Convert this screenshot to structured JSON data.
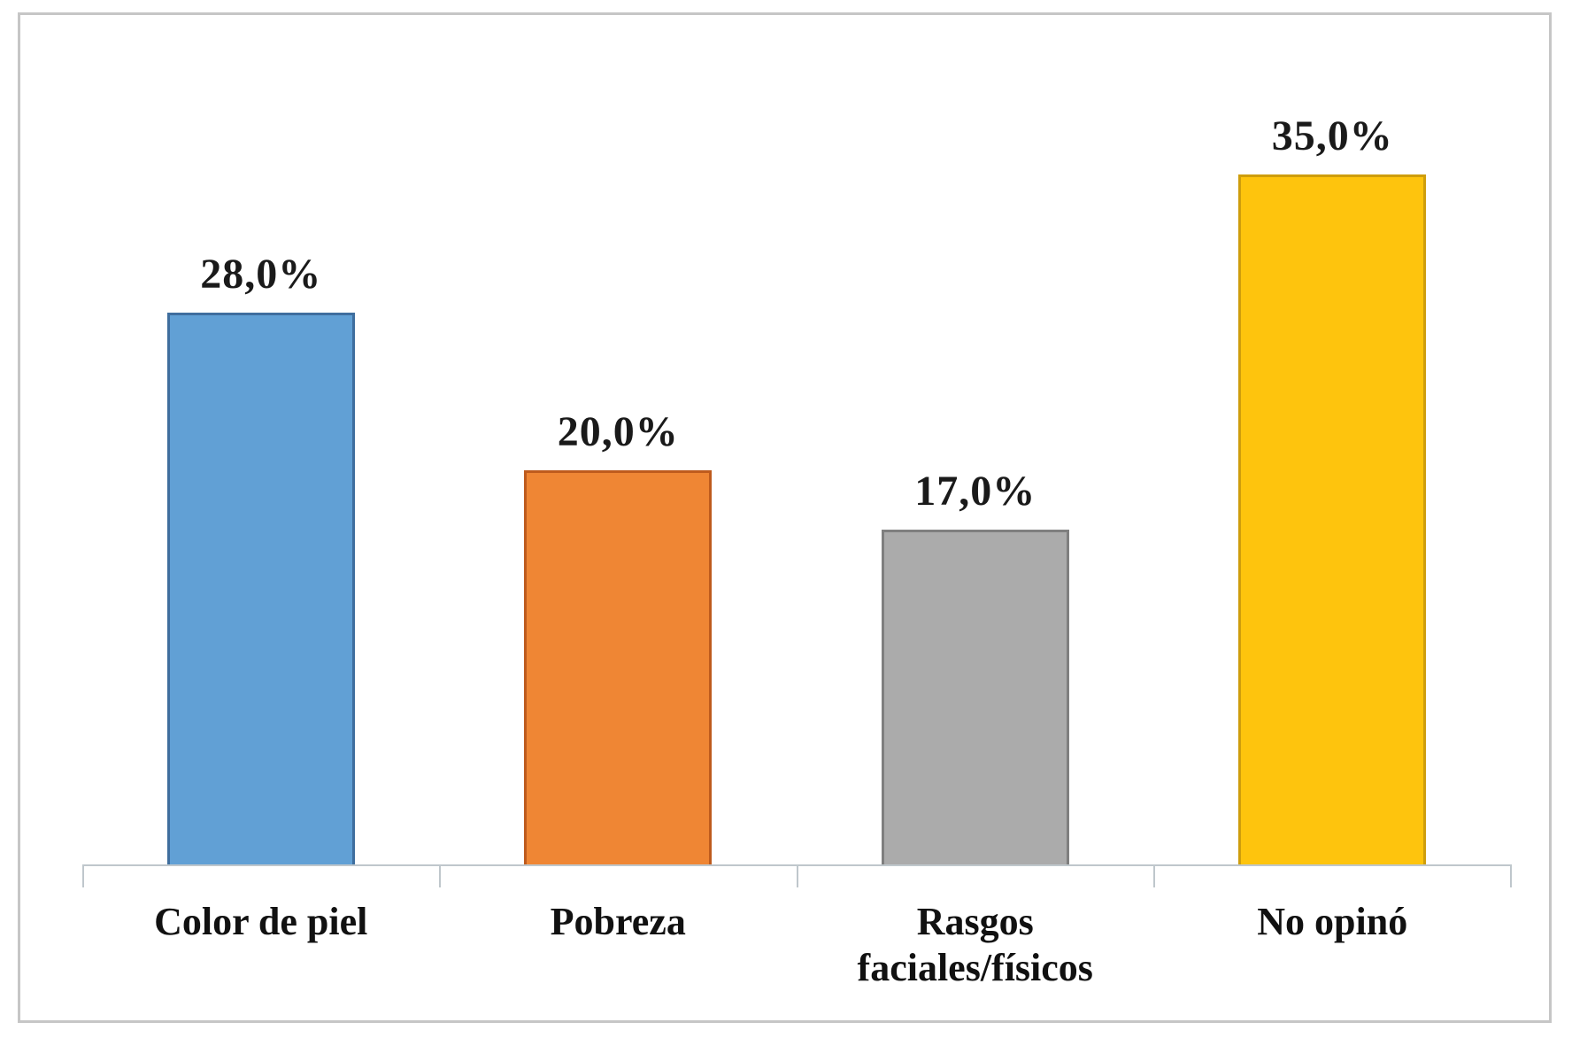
{
  "chart_data": {
    "type": "bar",
    "title": "",
    "xlabel": "",
    "ylabel": "",
    "categories": [
      "Color de piel",
      "Pobreza",
      "Rasgos faciales/físicos",
      "No opinó"
    ],
    "values": [
      28.0,
      20.0,
      17.0,
      35.0
    ],
    "value_labels": [
      "28,0%",
      "20,0%",
      "17,0%",
      "35,0%"
    ],
    "colors": [
      "#61A0D5",
      "#EF8634",
      "#ABABAB",
      "#FEC40D"
    ],
    "border_colors": [
      "#3F6E9E",
      "#BE5B1D",
      "#7F7F7F",
      "#CE9D0C"
    ],
    "ylim": [
      0,
      40
    ],
    "grid": false,
    "legend": "none",
    "decimal_style": "comma",
    "axis_line_color": "#BFC7CC",
    "frame_border_color": "#C6C6C6",
    "background_color": "#FFFFFF"
  }
}
